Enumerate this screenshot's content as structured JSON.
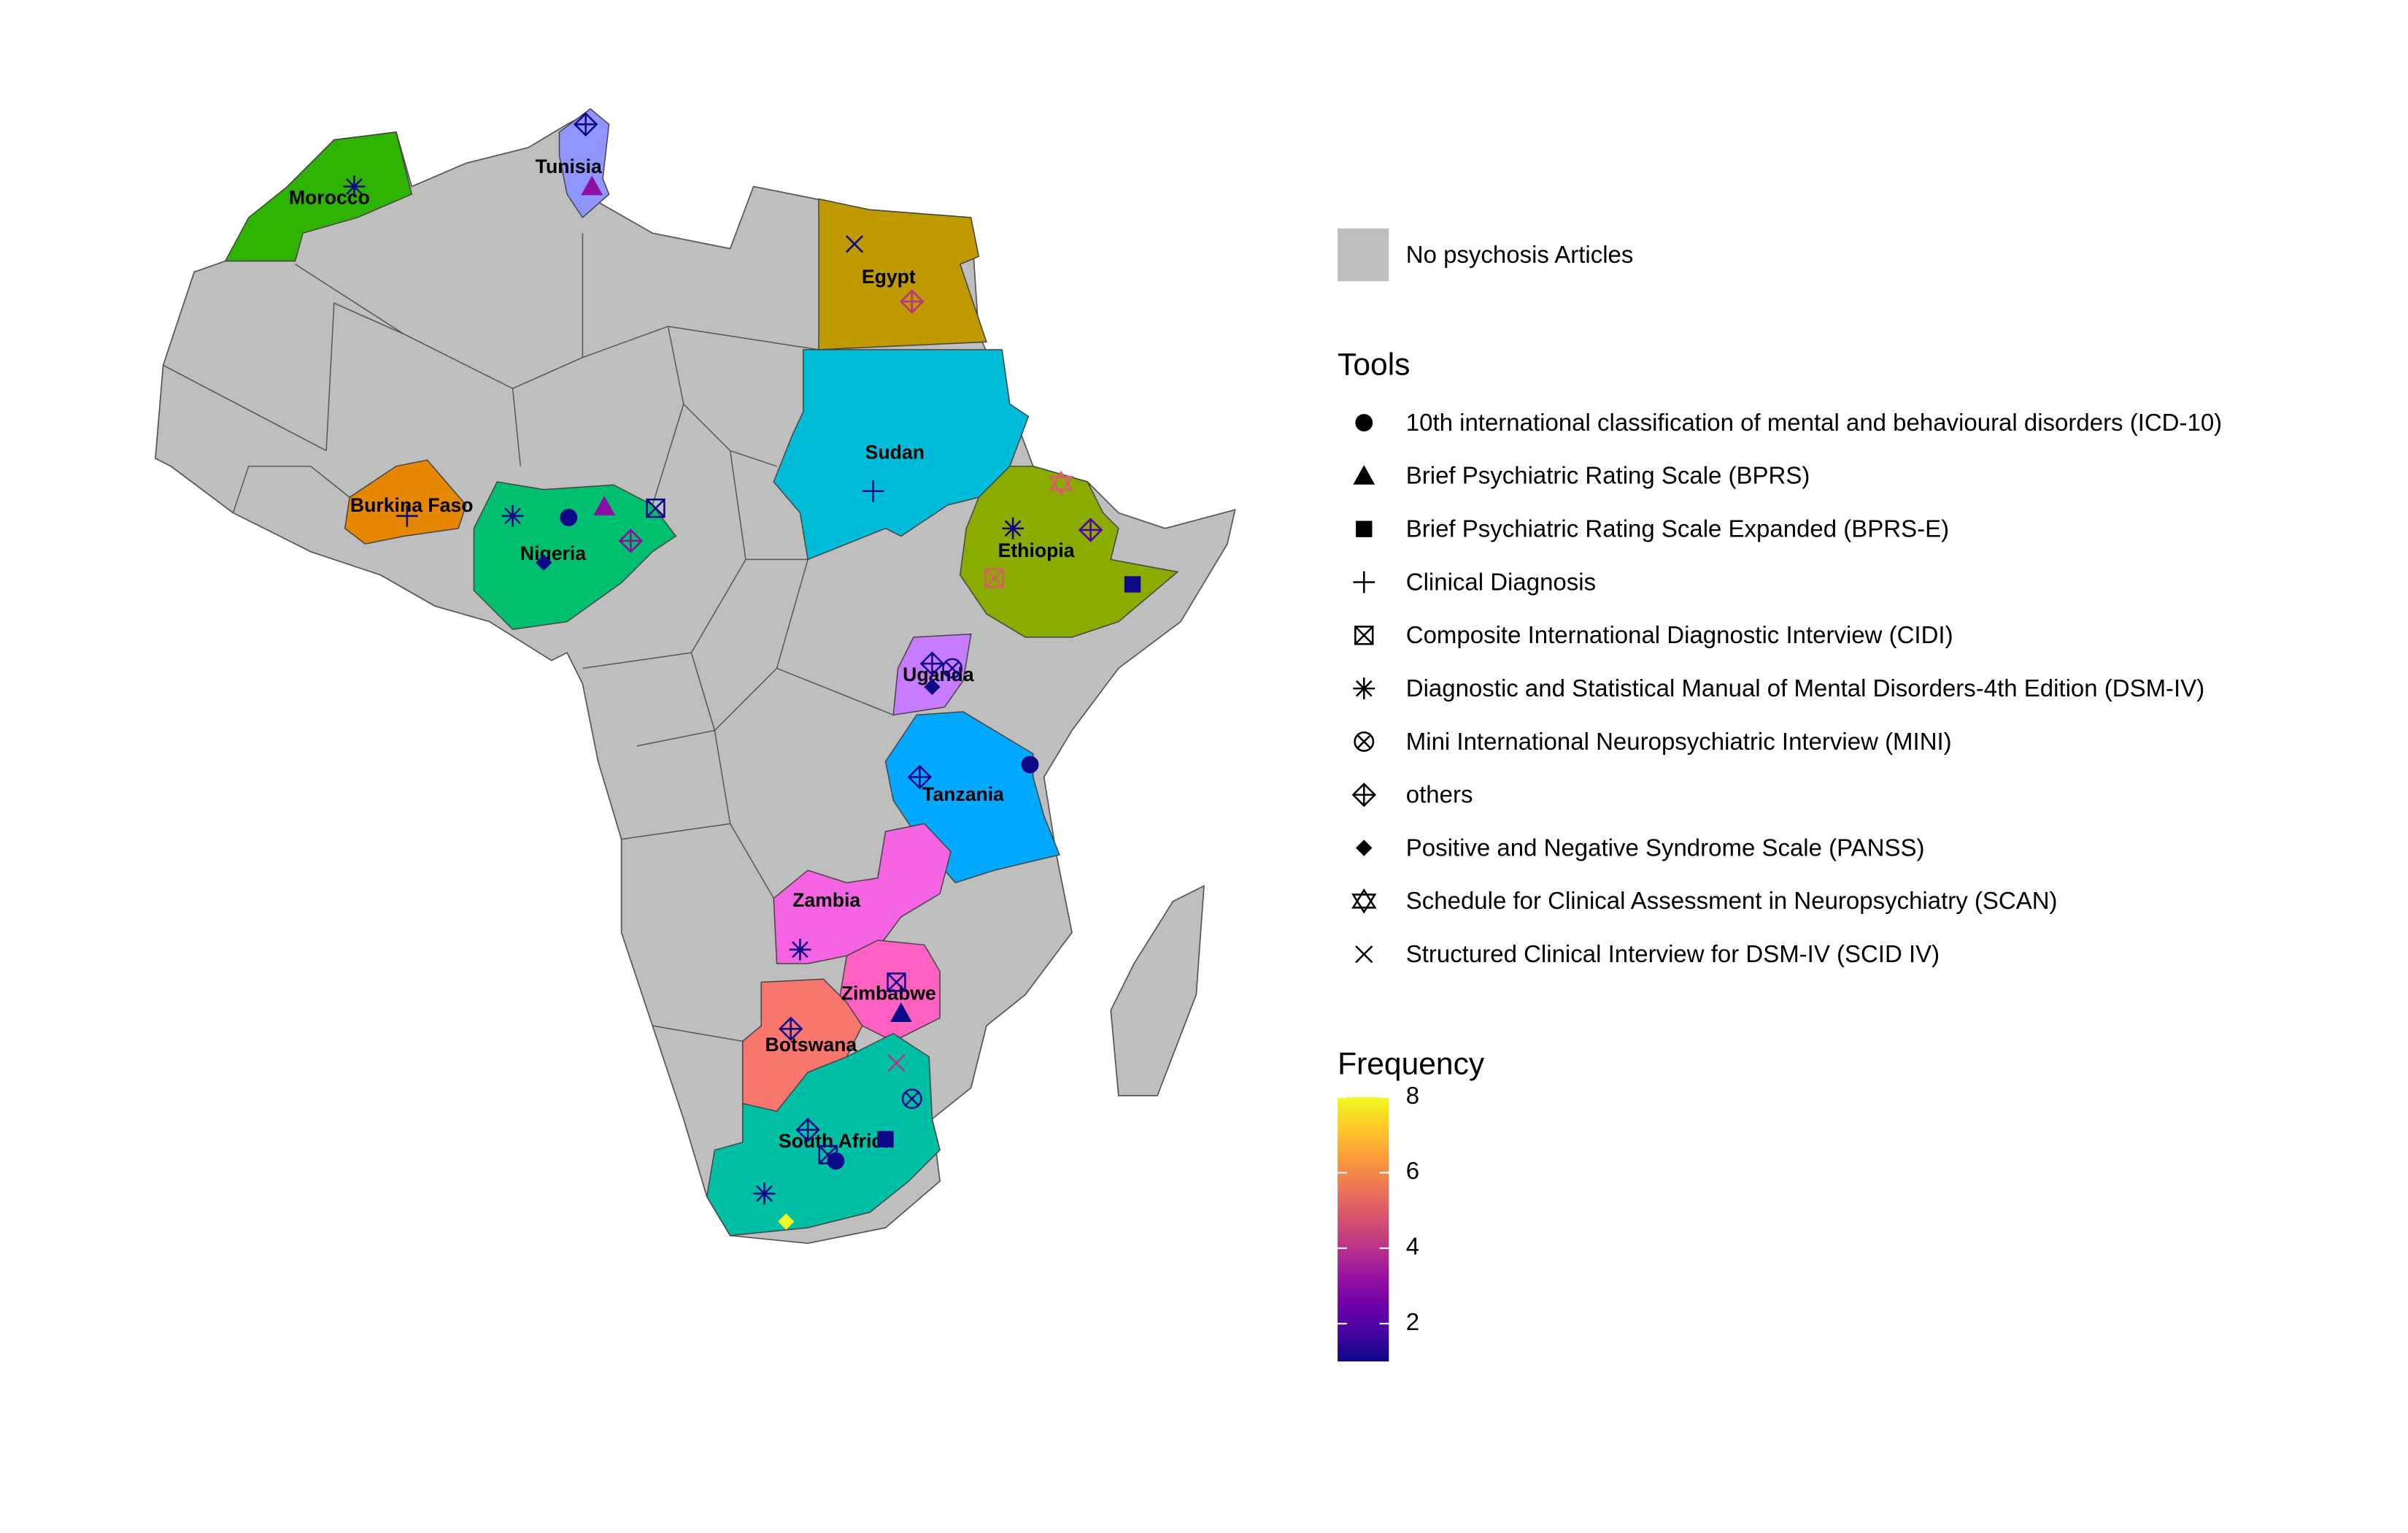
{
  "countries": [
    {
      "name": "Morocco",
      "color": "#2db300"
    },
    {
      "name": "Tunisia",
      "color": "#8f94ff"
    },
    {
      "name": "Egypt",
      "color": "#bf9900"
    },
    {
      "name": "Sudan",
      "color": "#00bcd8"
    },
    {
      "name": "Ethiopia",
      "color": "#8aab00"
    },
    {
      "name": "Burkina Faso",
      "color": "#e58700"
    },
    {
      "name": "Nigeria",
      "color": "#00c06f"
    },
    {
      "name": "Uganda",
      "color": "#c77cff"
    },
    {
      "name": "Tanzania",
      "color": "#00a9ff"
    },
    {
      "name": "Zambia",
      "color": "#f564e3"
    },
    {
      "name": "Zimbabwe",
      "color": "#ff61c3"
    },
    {
      "name": "Botswana",
      "color": "#f8766d"
    },
    {
      "name": "South Africa",
      "color": "#00bfa4"
    }
  ],
  "legend": {
    "no_data": {
      "label": "No psychosis Articles",
      "color": "#bebebe"
    },
    "tools_title": "Tools",
    "tools": [
      "10th international classification of mental and behavioural disorders (ICD-10)",
      "Brief Psychiatric Rating Scale (BPRS)",
      "Brief Psychiatric Rating Scale Expanded (BPRS-E)",
      "Clinical Diagnosis",
      "Composite International Diagnostic Interview (CIDI)",
      "Diagnostic and Statistical Manual of Mental Disorders-4th Edition (DSM-IV)",
      "Mini International Neuropsychiatric Interview (MINI)",
      "others",
      "Positive and Negative Syndrome Scale (PANSS)",
      "Schedule for Clinical Assessment in Neuropsychiatry (SCAN)",
      "Structured Clinical Interview for DSM-IV (SCID IV)"
    ]
  },
  "frequency": {
    "title": "Frequency",
    "lim": [
      1,
      8
    ],
    "ticks": [
      2,
      4,
      6,
      8
    ]
  },
  "markers": [
    {
      "tool": "Diagnostic and Statistical Manual of Mental Disorders-4th Edition (DSM-IV)",
      "frequency": 1
    },
    {
      "tool": "others",
      "frequency": 1
    },
    {
      "tool": "Brief Psychiatric Rating Scale (BPRS)",
      "frequency": 3
    },
    {
      "tool": "Structured Clinical Interview for DSM-IV (SCID IV)",
      "frequency": 1
    },
    {
      "tool": "others",
      "frequency": 4
    },
    {
      "tool": "Clinical Diagnosis",
      "frequency": 1
    },
    {
      "tool": "Schedule for Clinical Assessment in Neuropsychiatry (SCAN)",
      "frequency": 5
    },
    {
      "tool": "Diagnostic and Statistical Manual of Mental Disorders-4th Edition (DSM-IV)",
      "frequency": 1
    },
    {
      "tool": "others",
      "frequency": 2
    },
    {
      "tool": "Composite International Diagnostic Interview (CIDI)",
      "frequency": 5
    },
    {
      "tool": "Brief Psychiatric Rating Scale Expanded (BPRS-E)",
      "frequency": 1
    },
    {
      "tool": "Clinical Diagnosis",
      "frequency": 1
    },
    {
      "tool": "Diagnostic and Statistical Manual of Mental Disorders-4th Edition (DSM-IV)",
      "frequency": 1
    },
    {
      "tool": "10th international classification of mental and behavioural disorders (ICD-10)",
      "frequency": 1
    },
    {
      "tool": "Brief Psychiatric Rating Scale (BPRS)",
      "frequency": 3
    },
    {
      "tool": "Composite International Diagnostic Interview (CIDI)",
      "frequency": 1
    },
    {
      "tool": "others",
      "frequency": 3
    },
    {
      "tool": "Positive and Negative Syndrome Scale (PANSS)",
      "frequency": 1
    },
    {
      "tool": "others",
      "frequency": 1
    },
    {
      "tool": "Mini International Neuropsychiatric Interview (MINI)",
      "frequency": 1
    },
    {
      "tool": "Positive and Negative Syndrome Scale (PANSS)",
      "frequency": 1
    },
    {
      "tool": "10th international classification of mental and behavioural disorders (ICD-10)",
      "frequency": 1
    },
    {
      "tool": "others",
      "frequency": 1
    },
    {
      "tool": "Diagnostic and Statistical Manual of Mental Disorders-4th Edition (DSM-IV)",
      "frequency": 1
    },
    {
      "tool": "Composite International Diagnostic Interview (CIDI)",
      "frequency": 1
    },
    {
      "tool": "Brief Psychiatric Rating Scale (BPRS)",
      "frequency": 1
    },
    {
      "tool": "Structured Clinical Interview for DSM-IV (SCID IV)",
      "frequency": 4
    },
    {
      "tool": "others",
      "frequency": 1
    },
    {
      "tool": "Mini International Neuropsychiatric Interview (MINI)",
      "frequency": 1
    },
    {
      "tool": "others",
      "frequency": 1
    },
    {
      "tool": "Composite International Diagnostic Interview (CIDI)",
      "frequency": 1
    },
    {
      "tool": "Brief Psychiatric Rating Scale Expanded (BPRS-E)",
      "frequency": 1
    },
    {
      "tool": "10th international classification of mental and behavioural disorders (ICD-10)",
      "frequency": 1
    },
    {
      "tool": "Diagnostic and Statistical Manual of Mental Disorders-4th Edition (DSM-IV)",
      "frequency": 1
    },
    {
      "tool": "Positive and Negative Syndrome Scale (PANSS)",
      "frequency": 8
    }
  ]
}
